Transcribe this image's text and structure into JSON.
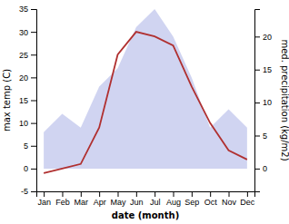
{
  "chart_data": {
    "type": "line",
    "categories": [
      "Jan",
      "Feb",
      "Mar",
      "Apr",
      "May",
      "Jun",
      "Jul",
      "Aug",
      "Sep",
      "Oct",
      "Nov",
      "Dec"
    ],
    "series": [
      {
        "type": "area",
        "color": "#b0b8e8",
        "values": [
          8,
          12,
          9,
          18,
          22,
          31,
          35,
          29,
          20,
          9,
          13,
          9
        ]
      },
      {
        "type": "line",
        "color": "#b03030",
        "values": [
          -1,
          0,
          1,
          9,
          25,
          30,
          29,
          27,
          18,
          10,
          4,
          2
        ]
      }
    ],
    "xlabel": "date (month)",
    "ylabel": "max temp (C)",
    "y2label": "med. precipitation (kg/m2)",
    "ylim": [
      -5,
      35
    ],
    "yticks": [
      -5,
      0,
      5,
      10,
      15,
      20,
      25,
      30,
      35
    ],
    "y2lim": [
      -3.452857142857143,
      24.17
    ],
    "y2ticks": [
      0,
      5,
      10,
      15,
      20
    ],
    "grid": false
  }
}
